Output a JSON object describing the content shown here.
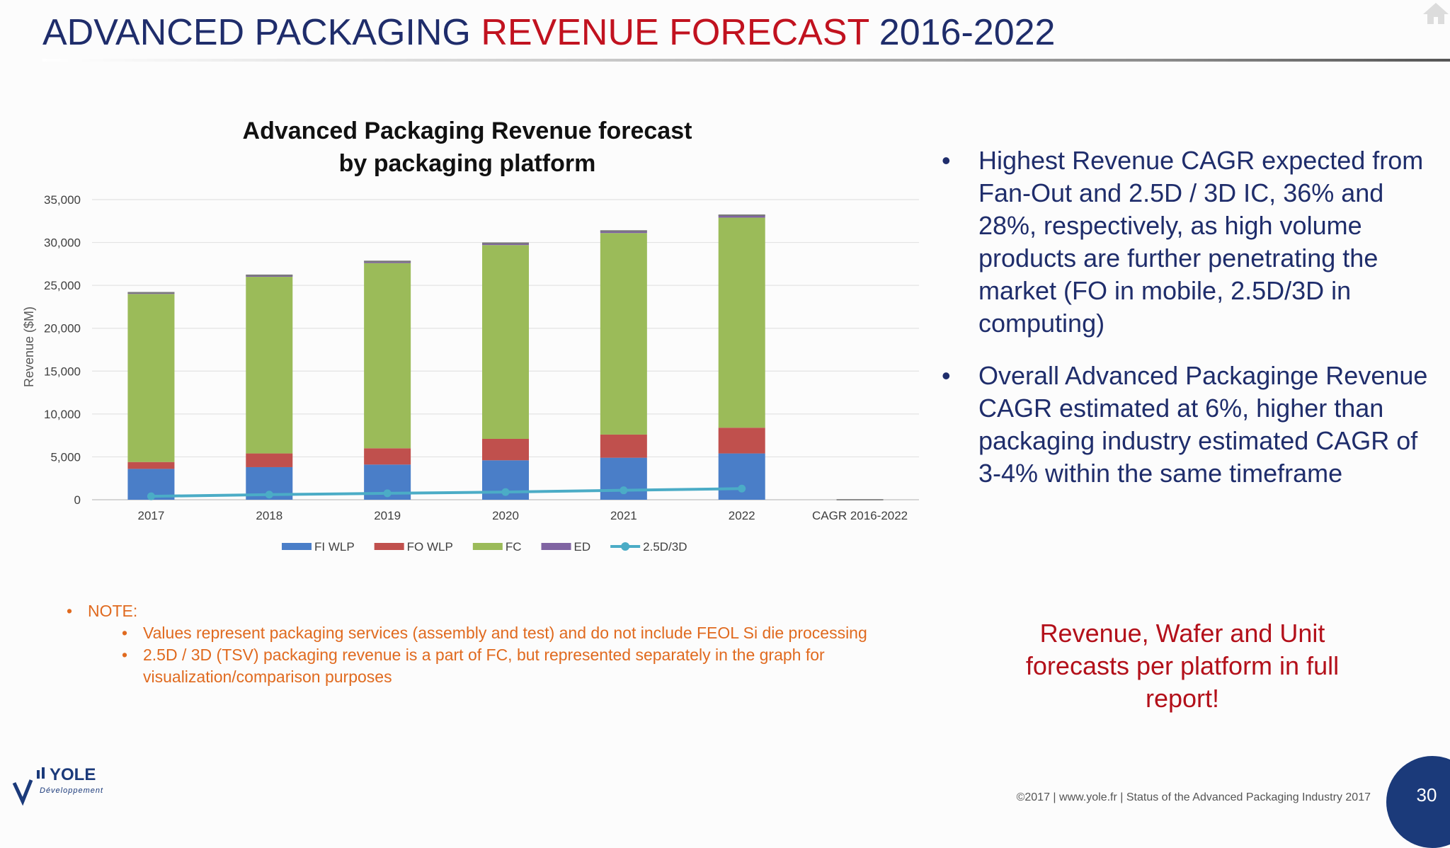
{
  "title": {
    "part1": "ADVANCED PACKAGING ",
    "part2": "REVENUE FORECAST",
    "part3": " 2016-2022"
  },
  "chart_title_line1": "Advanced Packaging Revenue forecast",
  "chart_title_line2": "by packaging platform",
  "bullets": [
    "Highest Revenue CAGR expected from Fan-Out and 2.5D / 3D IC, 36% and 28%, respectively, as high volume products are further penetrating the market (FO in mobile, 2.5D/3D in computing)",
    "Overall Advanced Packaginge Revenue CAGR estimated at 6%, higher than packaging industry estimated CAGR of 3-4% within the same timeframe"
  ],
  "bullet_glyph": "•",
  "note": {
    "label": "NOTE:",
    "items": [
      "Values represent packaging services (assembly and test) and do not include FEOL Si die processing",
      "2.5D / 3D (TSV) packaging revenue is a part of FC, but represented separately in the graph for visualization/comparison purposes"
    ]
  },
  "callout": "Revenue, Wafer and Unit forecasts per platform in full report!",
  "footer": "©2017 | www.yole.fr | Status of the Advanced Packaging Industry 2017",
  "page_number": "30",
  "logo": {
    "text": "YOLE",
    "subtext": "Développement"
  },
  "icons": {
    "home": "home-icon",
    "logo": "yole-logo"
  },
  "colors": {
    "title_blue": "#1f2d6b",
    "title_red": "#c1121f",
    "note_orange": "#e06a1f",
    "callout_red": "#b3101a"
  },
  "chart_data": {
    "type": "bar",
    "stacked": true,
    "categories": [
      "2017",
      "2018",
      "2019",
      "2020",
      "2021",
      "2022",
      "CAGR 2016-2022"
    ],
    "series": [
      {
        "name": "FI WLP",
        "color": "#4a7ec8",
        "values": [
          3600,
          3800,
          4100,
          4600,
          4900,
          5400,
          0
        ]
      },
      {
        "name": "FO WLP",
        "color": "#c0504d",
        "values": [
          800,
          1600,
          1900,
          2500,
          2700,
          3000,
          0
        ]
      },
      {
        "name": "FC",
        "color": "#9bbb59",
        "values": [
          19600,
          20600,
          21600,
          22600,
          23500,
          24500,
          0
        ]
      },
      {
        "name": "ED",
        "color": "#8064a2",
        "values": [
          150,
          180,
          200,
          220,
          250,
          280,
          0
        ]
      },
      {
        "name": "2.5D/3D",
        "type": "line",
        "color": "#4bacc6",
        "values": [
          400,
          600,
          750,
          900,
          1100,
          1300,
          null
        ]
      }
    ],
    "ylabel": "Revenue ($M)",
    "ylim": [
      0,
      35000
    ],
    "yticks": [
      "0",
      "5,000",
      "10,000",
      "15,000",
      "20,000",
      "25,000",
      "30,000",
      "35,000"
    ],
    "grid": true,
    "legend_position": "bottom"
  }
}
